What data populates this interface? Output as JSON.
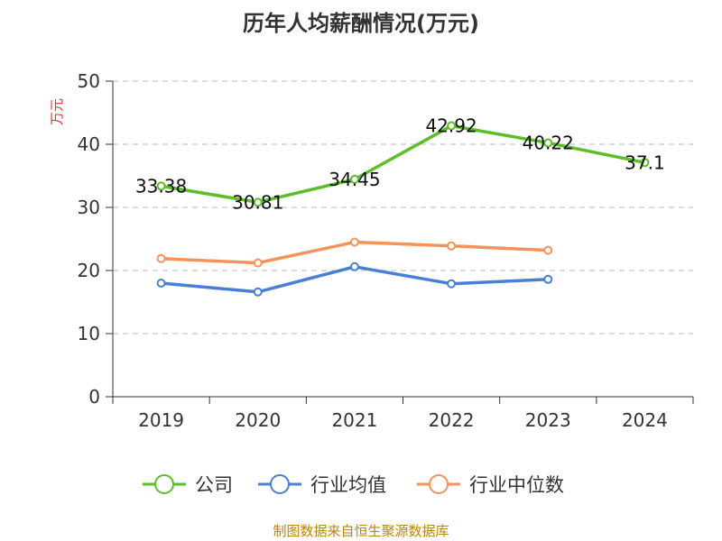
{
  "chart_data": {
    "type": "line",
    "title": "历年人均薪酬情况(万元)",
    "ylabel": "万元",
    "xlabel": "",
    "categories": [
      "2019",
      "2020",
      "2021",
      "2022",
      "2023",
      "2024"
    ],
    "ylim": [
      0,
      50
    ],
    "yticks": [
      "0",
      "10",
      "20",
      "30",
      "40",
      "50"
    ],
    "grid": true,
    "legend_position": "bottom",
    "series": [
      {
        "name": "公司",
        "color": "#5cbf2a",
        "values": [
          33.38,
          30.81,
          34.45,
          42.92,
          40.22,
          37.1
        ],
        "labels": [
          "33.38",
          "30.81",
          "34.45",
          "42.92",
          "40.22",
          "37.1"
        ]
      },
      {
        "name": "行业均值",
        "color": "#4a7fd6",
        "values": [
          18.0,
          16.6,
          20.6,
          17.9,
          18.6,
          null
        ]
      },
      {
        "name": "行业中位数",
        "color": "#f4935a",
        "values": [
          21.9,
          21.2,
          24.5,
          23.9,
          23.2,
          null
        ]
      }
    ],
    "source": "制图数据来自恒生聚源数据库"
  }
}
